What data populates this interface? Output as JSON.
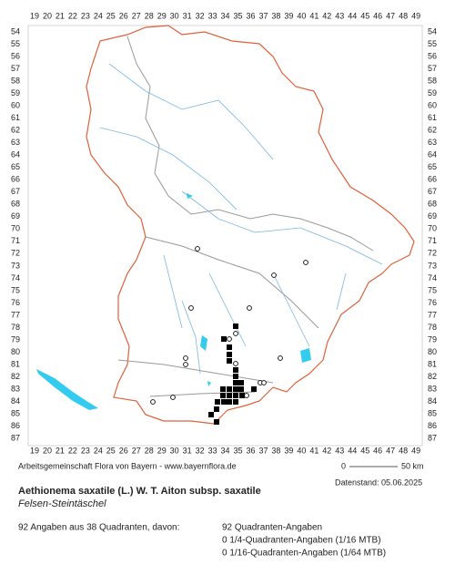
{
  "map": {
    "column_labels": [
      19,
      20,
      21,
      22,
      23,
      24,
      25,
      26,
      27,
      28,
      29,
      30,
      31,
      32,
      33,
      34,
      35,
      36,
      37,
      38,
      39,
      40,
      41,
      42,
      43,
      44,
      45,
      46,
      47,
      48,
      49
    ],
    "row_labels": [
      54,
      55,
      56,
      57,
      58,
      59,
      60,
      61,
      62,
      63,
      64,
      65,
      66,
      67,
      68,
      69,
      70,
      71,
      72,
      73,
      74,
      75,
      76,
      77,
      78,
      79,
      80,
      81,
      82,
      83,
      84,
      85,
      86,
      87
    ],
    "source": "Arbeitsgemeinschaft Flora von Bayern - www.bayernflora.de",
    "scale_start": "0",
    "scale_end": "50 km",
    "date": "Datenstand: 05.06.2025",
    "title": "Aethionema saxatile (L.) W. T. Aiton subsp. saxatile",
    "subtitle": "Felsen-Steintäschel",
    "summary": "92 Angaben aus 38 Quadranten, davon:",
    "counts": [
      "92 Quadranten-Angaben",
      "0 1/4-Quadranten-Angaben (1/16 MTB)",
      "0 1/16-Quadranten-Angaben (1/64 MTB)"
    ]
  }
}
